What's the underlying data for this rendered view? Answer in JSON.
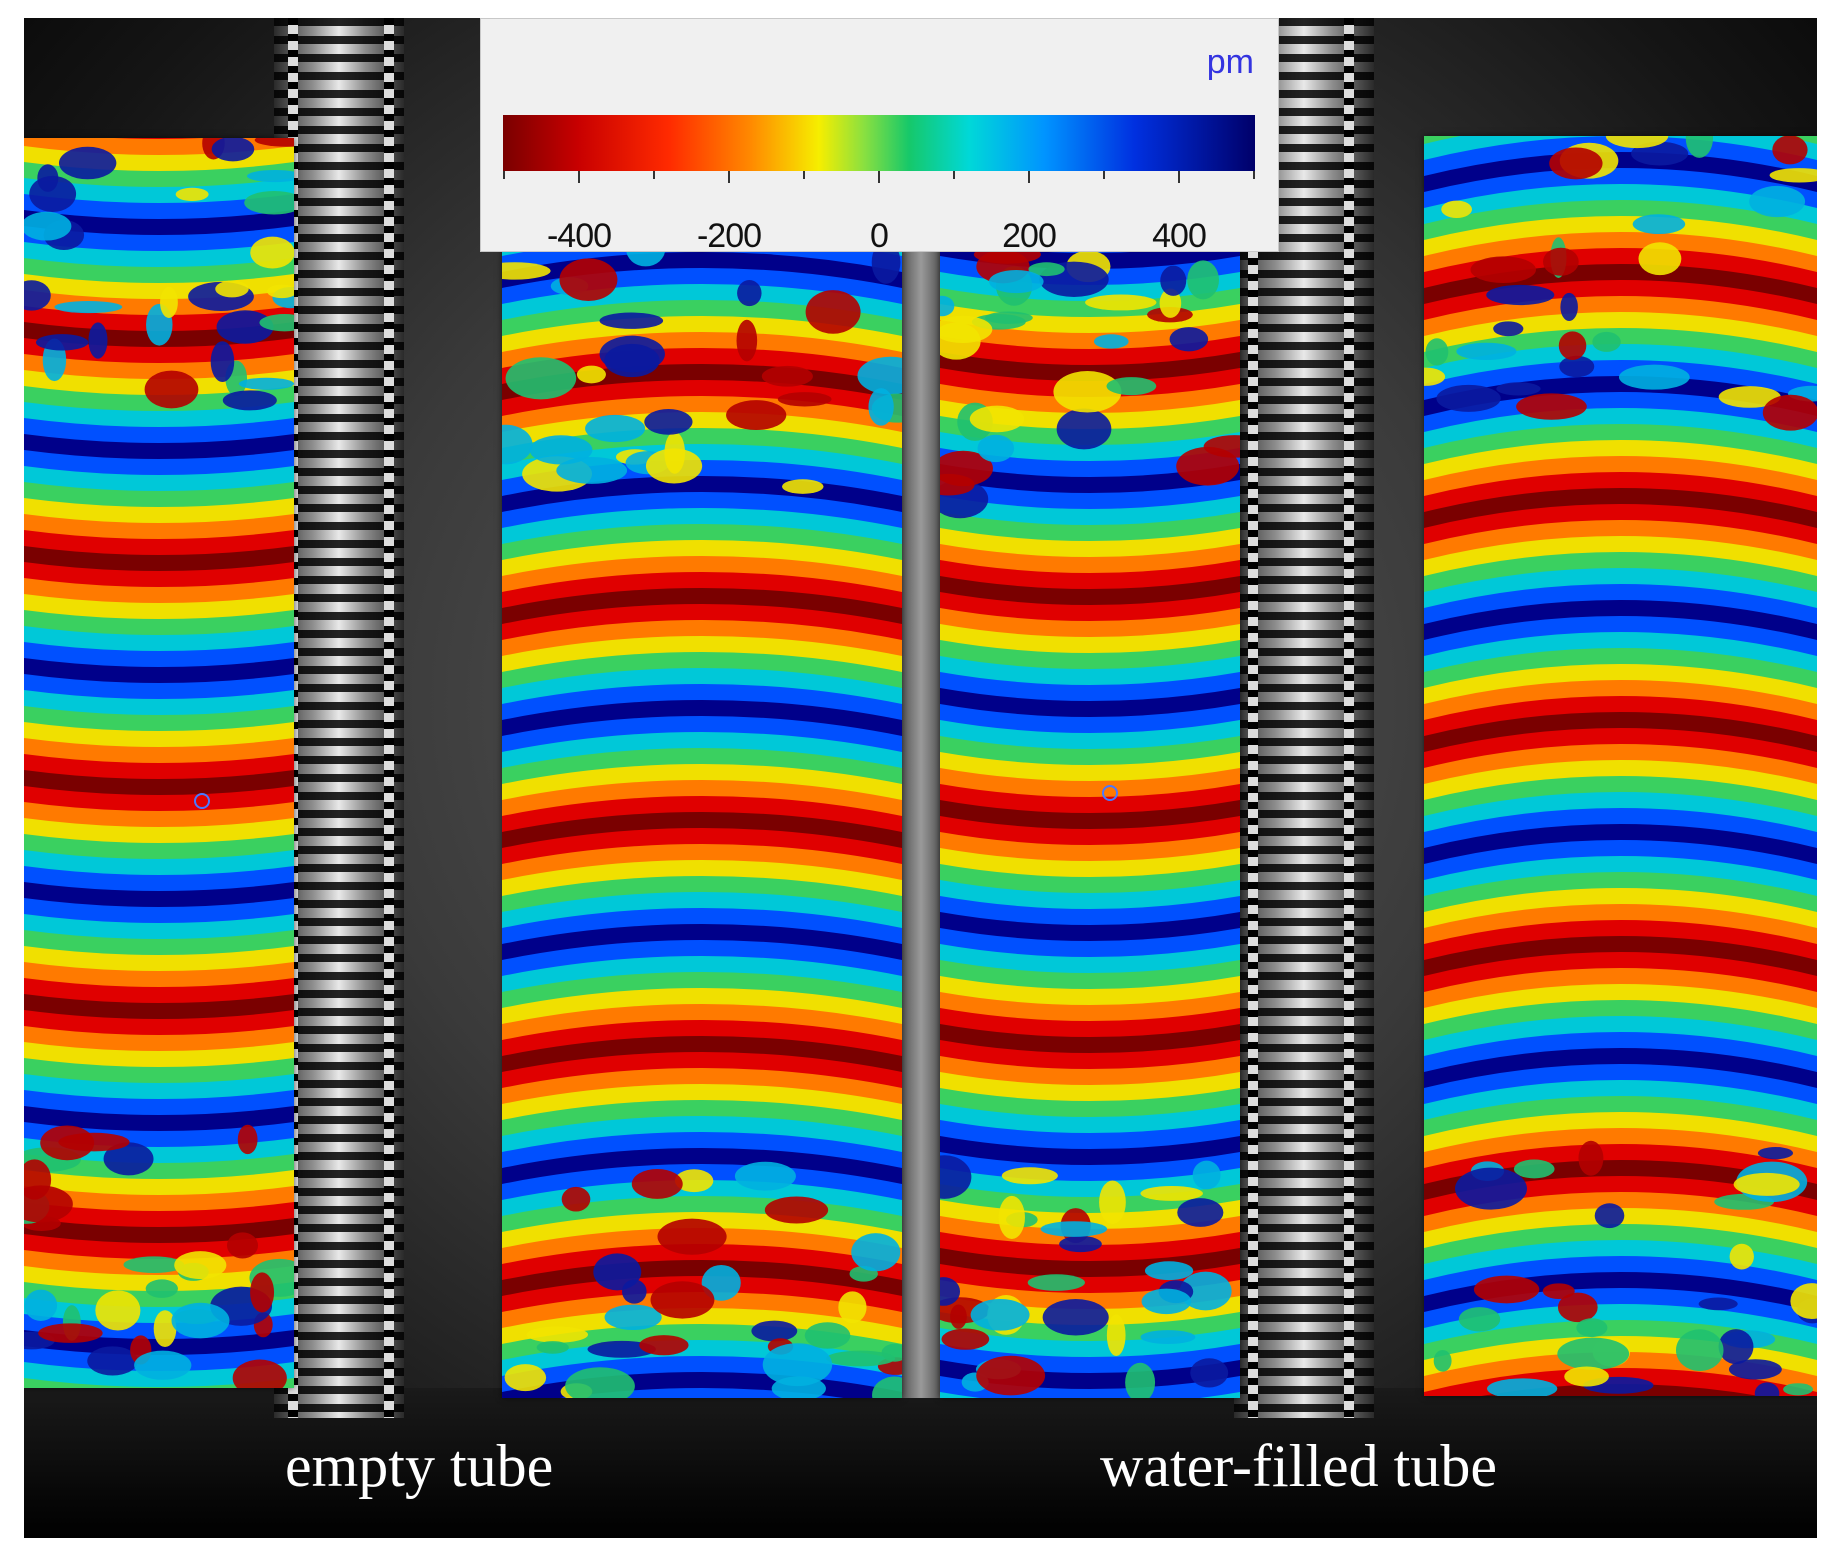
{
  "legend": {
    "unit": "pm",
    "ticks": [
      "-400",
      "-200",
      "0",
      "200",
      "400"
    ],
    "colors": [
      "#7a0000",
      "#ff2a00",
      "#f6ee00",
      "#16c86a",
      "#00d8d8",
      "#0030e0",
      "#00006a"
    ]
  },
  "captions": {
    "left": "empty tube",
    "right": "water-filled tube"
  }
}
